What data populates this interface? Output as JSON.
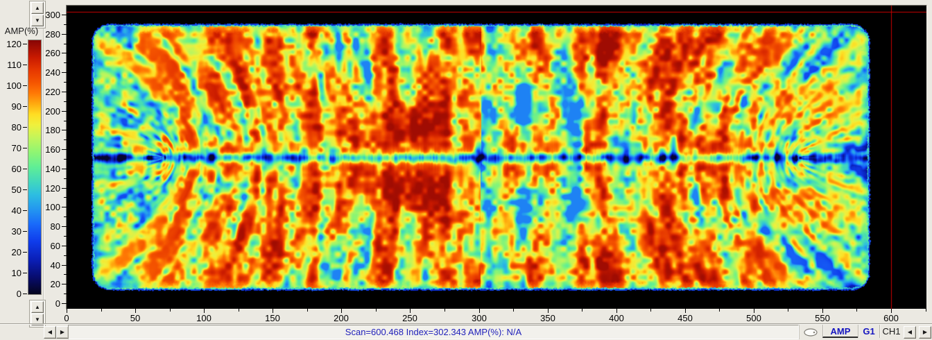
{
  "colorbar": {
    "title": "AMP(%)",
    "min": 0,
    "max": 120,
    "tick_step": 10,
    "tick_labels": [
      "120",
      "110",
      "100",
      "90",
      "80",
      "70",
      "60",
      "50",
      "40",
      "30",
      "20",
      "10",
      "0"
    ],
    "gradient_stops": [
      {
        "amp": 120,
        "color": "#870505"
      },
      {
        "amp": 112,
        "color": "#c81900"
      },
      {
        "amp": 106,
        "color": "#e63700"
      },
      {
        "amp": 100,
        "color": "#f55500"
      },
      {
        "amp": 95,
        "color": "#ff7805"
      },
      {
        "amp": 90,
        "color": "#ffaa0f"
      },
      {
        "amp": 85,
        "color": "#ffdd23"
      },
      {
        "amp": 80,
        "color": "#f0f03c"
      },
      {
        "amp": 74,
        "color": "#c3f55a"
      },
      {
        "amp": 67,
        "color": "#8ef573"
      },
      {
        "amp": 60,
        "color": "#5fee96"
      },
      {
        "amp": 53,
        "color": "#41d7be"
      },
      {
        "amp": 47,
        "color": "#2dbee1"
      },
      {
        "amp": 40,
        "color": "#2396f0"
      },
      {
        "amp": 33,
        "color": "#1969fa"
      },
      {
        "amp": 25,
        "color": "#0f3ceb"
      },
      {
        "amp": 16,
        "color": "#0a1eb4"
      },
      {
        "amp": 8,
        "color": "#080c6e"
      },
      {
        "amp": 0,
        "color": "#04041c"
      }
    ]
  },
  "y_axis": {
    "min": 0,
    "max": 300,
    "major_step": 20,
    "minor_step": 10,
    "tick_labels": [
      "300",
      "280",
      "260",
      "240",
      "220",
      "200",
      "180",
      "160",
      "140",
      "120",
      "100",
      "80",
      "60",
      "40",
      "20",
      "0"
    ]
  },
  "x_axis": {
    "min": 0,
    "max": 600,
    "major_step": 50,
    "minor_step": 25,
    "tick_labels": [
      "0",
      "50",
      "100",
      "150",
      "200",
      "250",
      "300",
      "350",
      "400",
      "450",
      "500",
      "550",
      "600"
    ]
  },
  "cursor": {
    "scan": "600.468",
    "index": "302.343",
    "amp_readout": "N/A",
    "line_color": "#cc0000"
  },
  "status_bar": {
    "text": "Scan=600.468 Index=302.343  AMP(%): N/A",
    "text_color": "#2222bb"
  },
  "channel_tabs": [
    {
      "label": "AMP",
      "active": true,
      "style": "blue"
    },
    {
      "label": "G1",
      "active": false,
      "style": "blue"
    },
    {
      "label": "CH1",
      "active": false,
      "style": "plain"
    }
  ],
  "scroll_controls": {
    "up_glyph": "▲",
    "down_glyph": "▼",
    "left_glyph": "◀",
    "right_glyph": "▶"
  },
  "chart_data": {
    "type": "heatmap",
    "title": "",
    "colorbar_label": "AMP(%)",
    "colorbar_range": [
      0,
      120
    ],
    "x_ticks": [
      0,
      50,
      100,
      150,
      200,
      250,
      300,
      350,
      400,
      450,
      500,
      550,
      600
    ],
    "y_ticks": [
      0,
      20,
      40,
      60,
      80,
      100,
      120,
      140,
      160,
      180,
      200,
      220,
      240,
      260,
      280,
      300
    ],
    "x_range_visible": [
      0,
      626
    ],
    "y_range_visible": [
      0,
      309
    ],
    "cursor_position": {
      "scan": 600.468,
      "index": 302.343,
      "amp": "N/A"
    },
    "specimen_extent": {
      "scan": [
        18,
        586
      ],
      "index": [
        14,
        290
      ],
      "corner_radius_mm": 14
    },
    "centerline_index": 152,
    "pattern_description": "Dense speckled amplitude C-scan: field mostly 85-110% (orange/red) with feather-like streaks of 50-75% (yellow/green/cyan) radiating symmetrically from the horizontal centerline; scattered 20-45% (blue) spots along centerline, near ends and edges; thin low-amplitude blue outline around rounded-rectangle part boundary; black (no data) outside part.",
    "legend_position": "left",
    "grid": false
  },
  "plot_background": "#000000"
}
